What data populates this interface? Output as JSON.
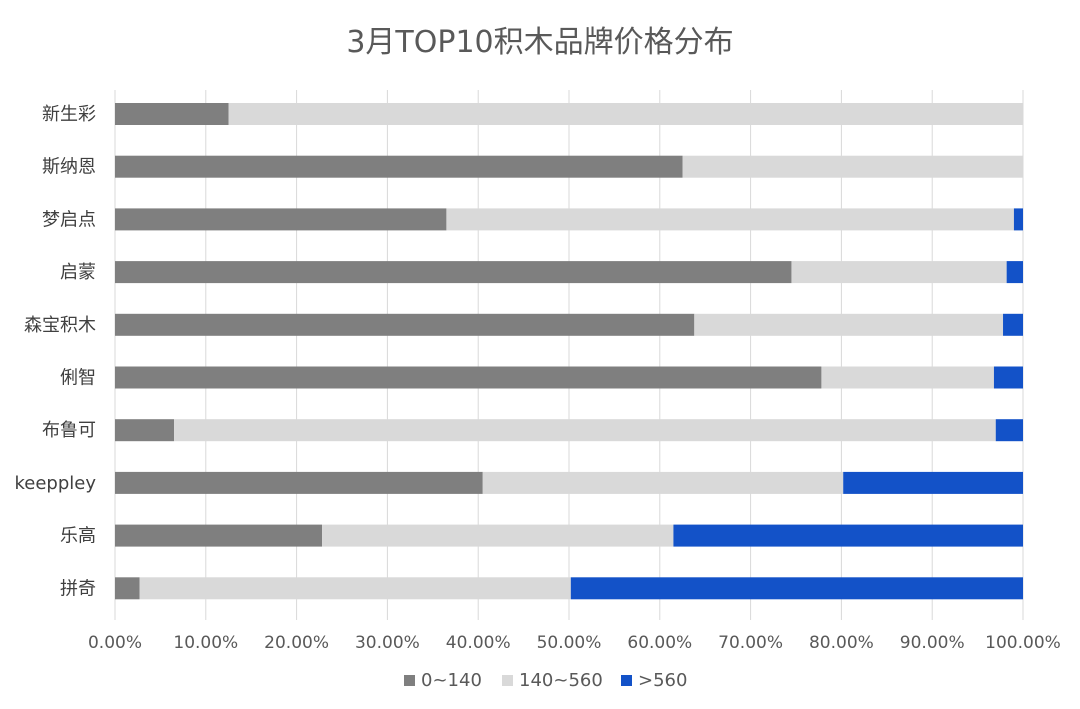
{
  "chart_data": {
    "type": "bar",
    "orientation": "horizontal",
    "stacked": true,
    "title": "3月TOP10积木品牌价格分布",
    "categories": [
      "新生彩",
      "斯纳恩",
      "梦启点",
      "启蒙",
      "森宝积木",
      "俐智",
      "布鲁可",
      "keeppley",
      "乐高",
      "拼奇"
    ],
    "series": [
      {
        "name": "0~140",
        "color": "#7f7f7f",
        "values": [
          0.125,
          0.625,
          0.365,
          0.745,
          0.638,
          0.778,
          0.065,
          0.405,
          0.228,
          0.027
        ]
      },
      {
        "name": "140~560",
        "color": "#d9d9d9",
        "values": [
          0.875,
          0.375,
          0.625,
          0.237,
          0.34,
          0.19,
          0.905,
          0.397,
          0.387,
          0.475
        ]
      },
      {
        "name": ">560",
        "color": "#1352c8",
        "values": [
          0.0,
          0.0,
          0.01,
          0.018,
          0.022,
          0.032,
          0.03,
          0.198,
          0.385,
          0.498
        ]
      }
    ],
    "x_ticks": [
      "0.00%",
      "10.00%",
      "20.00%",
      "30.00%",
      "40.00%",
      "50.00%",
      "60.00%",
      "70.00%",
      "80.00%",
      "90.00%",
      "100.00%"
    ],
    "xlim": [
      0,
      1
    ],
    "grid": true,
    "legend_position": "bottom"
  }
}
